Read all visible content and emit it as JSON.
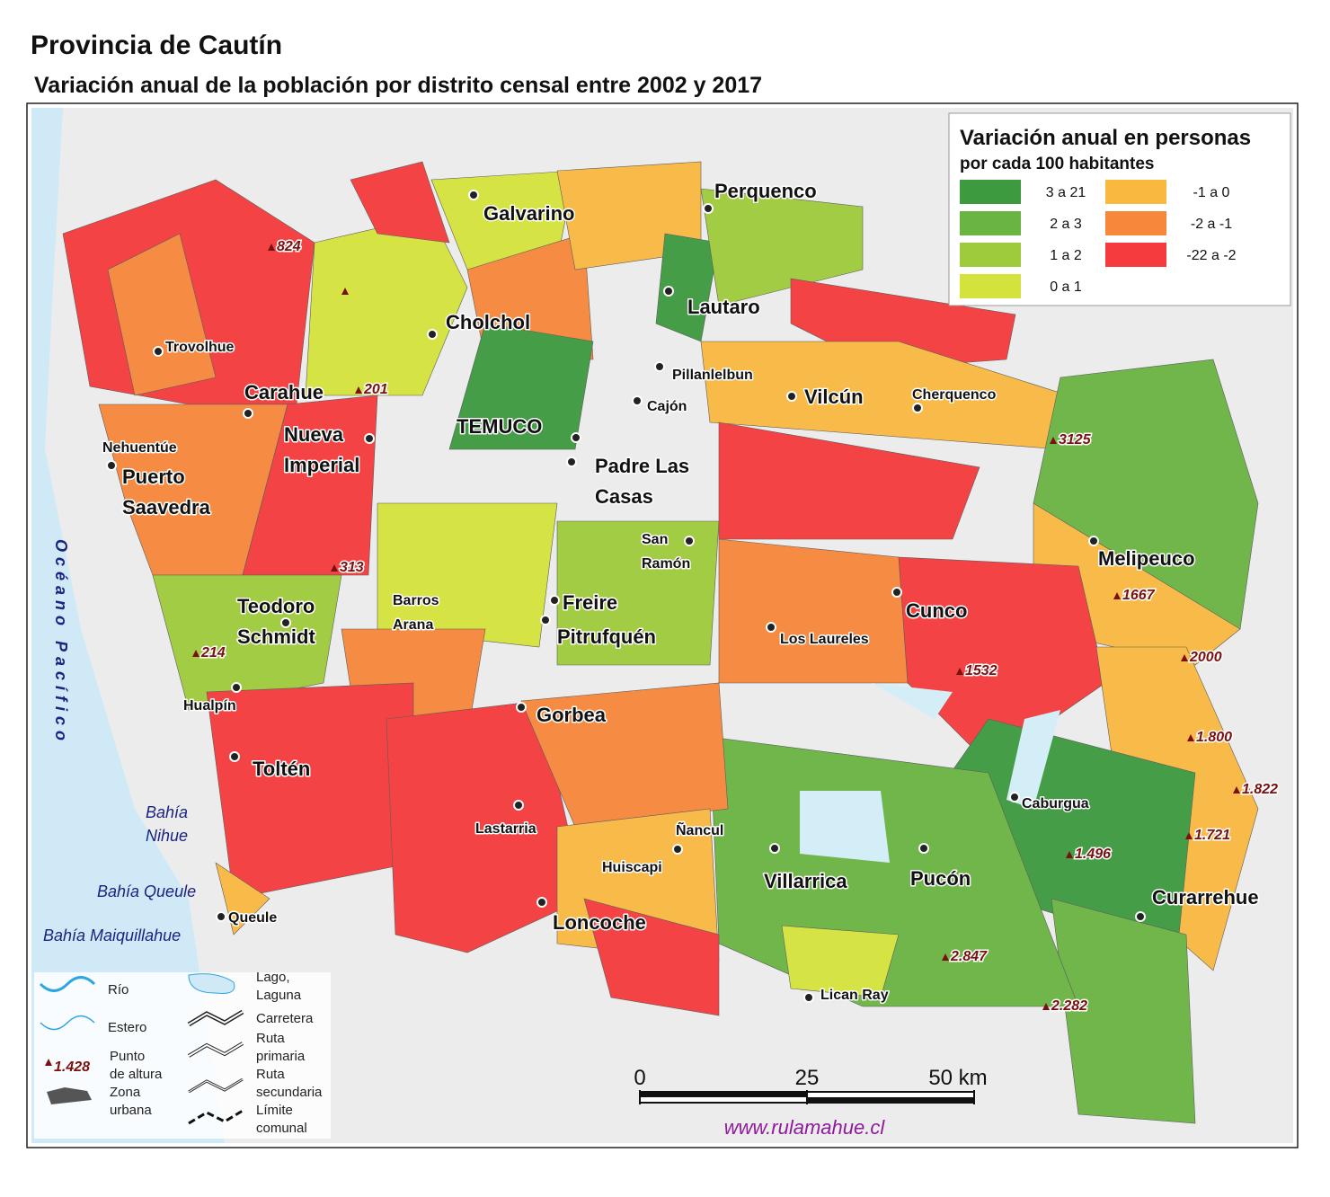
{
  "header": {
    "title": "Provincia de Cautín",
    "subtitle": "Variación anual de la población por distrito censal entre 2002 y 2017"
  },
  "legend": {
    "title": "Variación anual en personas",
    "subtitle": "por cada 100 habitantes",
    "classes": [
      {
        "label": "3 a 21",
        "color": "#3d9a3f"
      },
      {
        "label": "2 a 3",
        "color": "#6ab443"
      },
      {
        "label": "1 a 2",
        "color": "#9dcb3c"
      },
      {
        "label": "0 a 1",
        "color": "#d4e33c"
      },
      {
        "label": "-1 a 0",
        "color": "#f9b941"
      },
      {
        "label": "-2 a -1",
        "color": "#f7873a"
      },
      {
        "label": "-22 a -2",
        "color": "#f53b3d"
      }
    ]
  },
  "places": [
    {
      "lines": [
        "Galvarino"
      ]
    },
    {
      "lines": [
        "Perquenco"
      ]
    },
    {
      "lines": [
        "Cholchol"
      ]
    },
    {
      "lines": [
        "Lautaro"
      ]
    },
    {
      "lines": [
        "Trovolhue"
      ]
    },
    {
      "lines": [
        "Pillanlelbun"
      ]
    },
    {
      "lines": [
        "Carahue"
      ]
    },
    {
      "lines": [
        "Vilcún"
      ]
    },
    {
      "lines": [
        "Cherquenco"
      ]
    },
    {
      "lines": [
        "Cajón"
      ]
    },
    {
      "lines": [
        "TEMUCO"
      ]
    },
    {
      "lines": [
        "Nueva",
        "Imperial"
      ]
    },
    {
      "lines": [
        "Nehuentúe"
      ]
    },
    {
      "lines": [
        "Puerto",
        "Saavedra"
      ]
    },
    {
      "lines": [
        "Padre Las",
        "Casas"
      ]
    },
    {
      "lines": [
        "San",
        "Ramón"
      ]
    },
    {
      "lines": [
        "Melipeuco"
      ]
    },
    {
      "lines": [
        "Cunco"
      ]
    },
    {
      "lines": [
        "Teodoro",
        "Schmidt"
      ]
    },
    {
      "lines": [
        "Barros",
        "Arana"
      ]
    },
    {
      "lines": [
        "Freire"
      ]
    },
    {
      "lines": [
        "Pitrufquén"
      ]
    },
    {
      "lines": [
        "Los Laureles"
      ]
    },
    {
      "lines": [
        "Hualpín"
      ]
    },
    {
      "lines": [
        "Gorbea"
      ]
    },
    {
      "lines": [
        "Toltén"
      ]
    },
    {
      "lines": [
        "Caburgua"
      ]
    },
    {
      "lines": [
        "Lastarria"
      ]
    },
    {
      "lines": [
        "Ñancul"
      ]
    },
    {
      "lines": [
        "Huiscapi"
      ]
    },
    {
      "lines": [
        "Villarrica"
      ]
    },
    {
      "lines": [
        "Pucón"
      ]
    },
    {
      "lines": [
        "Curarrehue"
      ]
    },
    {
      "lines": [
        "Queule"
      ]
    },
    {
      "lines": [
        "Loncoche"
      ]
    },
    {
      "lines": [
        "Lican Ray"
      ]
    }
  ],
  "elevations": [
    "824",
    "201",
    "313",
    "214",
    "3125",
    "1667",
    "2000",
    "1532",
    "1.800",
    "1.822",
    "1.721",
    "1.496",
    "2.847",
    "2.282"
  ],
  "water": [
    {
      "lines": [
        "Océano Pacífico"
      ]
    },
    {
      "lines": [
        "Bahía",
        "Nihue"
      ]
    },
    {
      "lines": [
        "Bahía Queule"
      ]
    },
    {
      "lines": [
        "Bahía Maiquillahue"
      ]
    }
  ],
  "symbols": {
    "rio": "Río",
    "estero": "Estero",
    "punto": [
      "Punto",
      "de altura"
    ],
    "punto_example": "1.428",
    "urbana": [
      "Zona",
      "urbana"
    ],
    "lago": [
      "Lago,",
      "Laguna"
    ],
    "carretera": "Carretera",
    "primaria": [
      "Ruta",
      "primaria"
    ],
    "secundaria": [
      "Ruta",
      "secundaria"
    ],
    "limite": [
      "Límite",
      "comunal"
    ]
  },
  "scale": {
    "ticks": [
      0,
      25,
      {
        "value": 50,
        "label": "50 km"
      }
    ],
    "max": 50
  },
  "credit": "www.rulamahue.cl"
}
